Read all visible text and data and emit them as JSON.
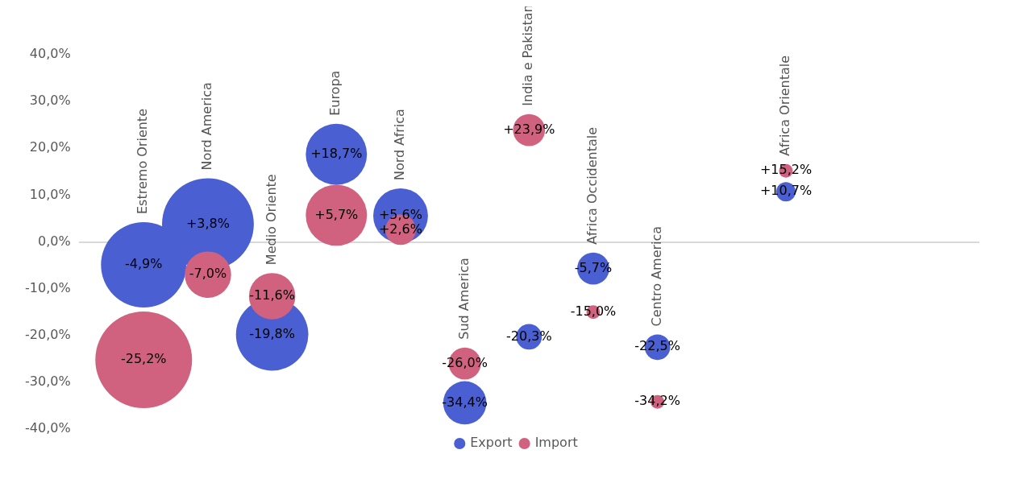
{
  "chart_data": {
    "type": "bubble",
    "categories": [
      null,
      "Estremo Oriente",
      "Nord America",
      "Medio Oriente",
      "Europa",
      "Nord Africa",
      "Sud America",
      "India e Pakistan",
      "Africa Occidentale",
      "Centro America",
      null,
      "Africa Orientale",
      null,
      null,
      null
    ],
    "series": [
      {
        "name": "Export",
        "color": "#4a5fd1",
        "values": [
          null,
          -4.9,
          3.8,
          -19.8,
          18.7,
          5.6,
          -34.4,
          -20.3,
          -5.7,
          -22.5,
          null,
          10.7,
          null,
          null,
          null
        ],
        "sizes": [
          null,
          0.78,
          0.9,
          0.56,
          0.4,
          0.32,
          0.2,
          0.07,
          0.11,
          0.07,
          null,
          0.04,
          null,
          null,
          null
        ],
        "value_labels": [
          null,
          "-4,9%",
          "+3,8%",
          "-19,8%",
          "+18,7%",
          "+5,6%",
          "-34,4%",
          "-20,3%",
          "-5,7%",
          "-22,5%",
          null,
          "+10,7%",
          null,
          null,
          null
        ]
      },
      {
        "name": "Import",
        "color": "#d1627f",
        "values": [
          null,
          -25.2,
          -7.0,
          -11.6,
          5.7,
          2.6,
          -26.0,
          23.9,
          -15.0,
          -34.2,
          null,
          15.2,
          null,
          null,
          null
        ],
        "sizes": [
          null,
          1,
          0.23,
          0.23,
          0.4,
          0.1,
          0.11,
          0.11,
          0.02,
          0.02,
          null,
          0.02,
          null,
          null,
          null
        ],
        "value_labels": [
          null,
          "-25,2%",
          "-7,0%",
          "-11,6%",
          "+5,7%",
          "+2,6%",
          "-26,0%",
          "+23,9%",
          "-15,0%",
          "-34,2%",
          null,
          "+15,2%",
          null,
          null,
          null
        ]
      }
    ],
    "ylim": [
      -40,
      40
    ],
    "yticks": [
      {
        "value": -40,
        "label": "-40,0%"
      },
      {
        "value": -30,
        "label": "-30,0%"
      },
      {
        "value": -20,
        "label": "-20,0%"
      },
      {
        "value": -10,
        "label": "-10,0%"
      },
      {
        "value": 0,
        "label": "0,0%"
      },
      {
        "value": 10,
        "label": "10,0%"
      },
      {
        "value": 20,
        "label": "20,0%"
      },
      {
        "value": 30,
        "label": "30,0%"
      },
      {
        "value": 40,
        "label": "40,0%"
      }
    ],
    "tick_labels": "y",
    "legend": "bottom",
    "grid": false
  }
}
